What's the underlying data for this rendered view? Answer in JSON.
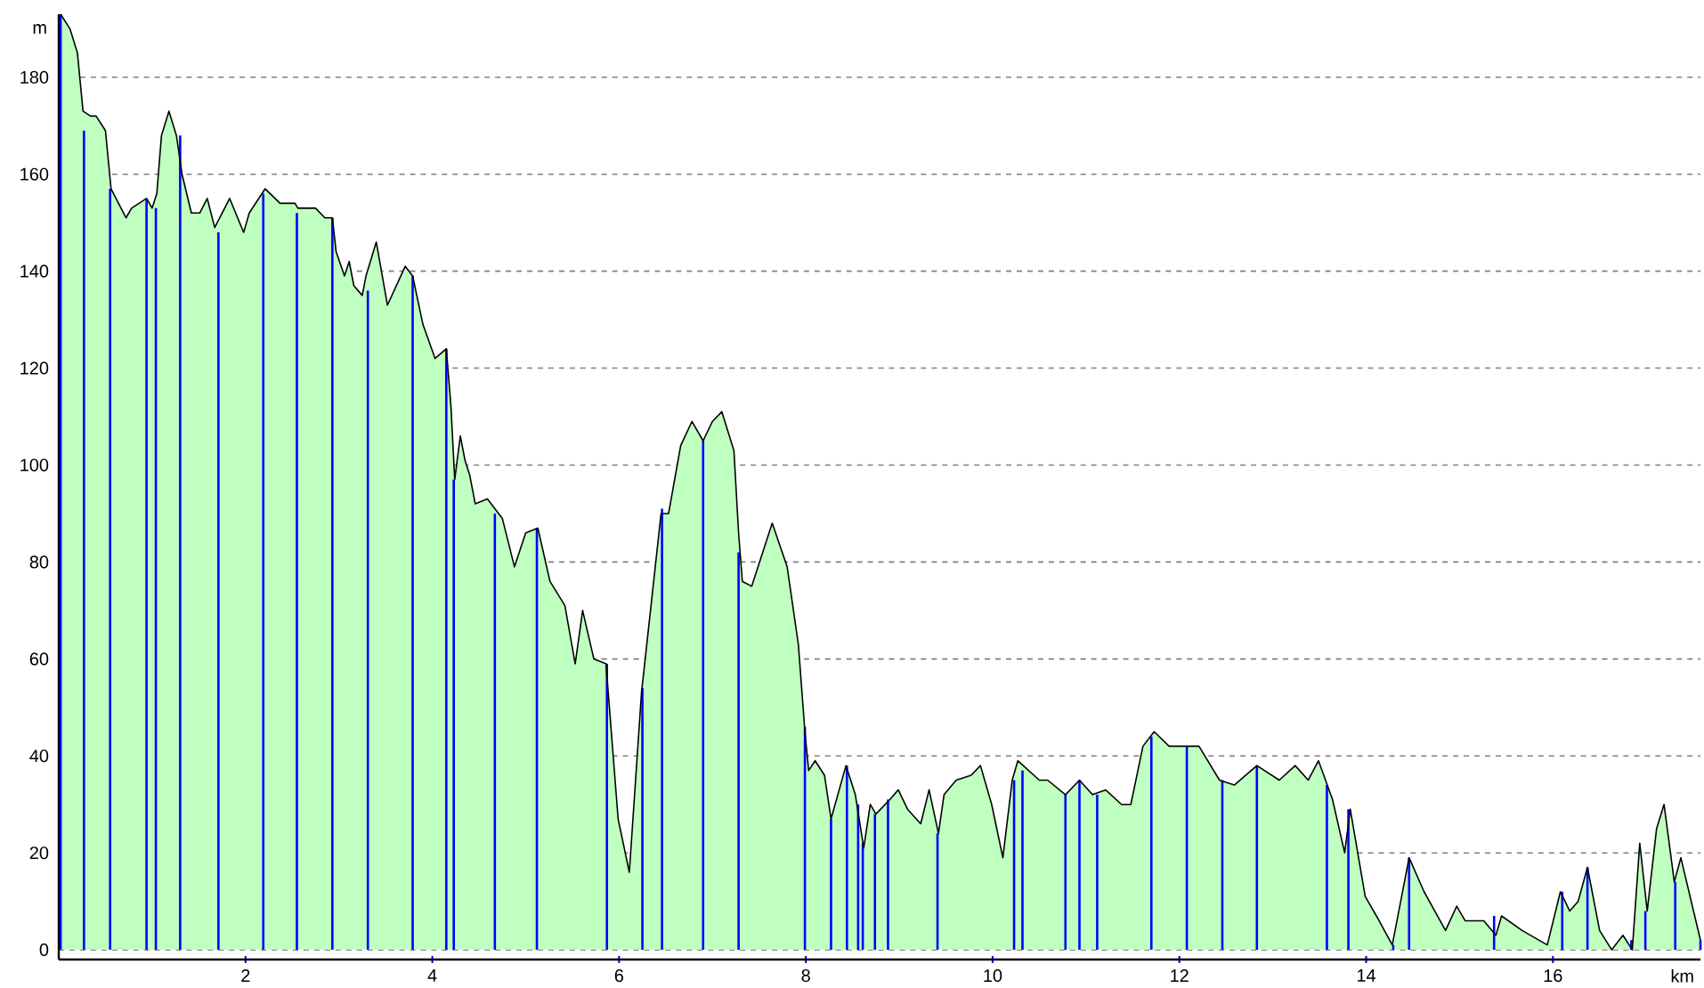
{
  "chart_data": {
    "type": "area",
    "xlabel": "km",
    "ylabel": "m",
    "xlim": [
      0,
      17.58
    ],
    "ylim": [
      -2,
      193
    ],
    "xticks": [
      2,
      4,
      6,
      8,
      10,
      12,
      14,
      16
    ],
    "yticks": [
      0,
      20,
      40,
      60,
      80,
      100,
      120,
      140,
      160,
      180
    ],
    "grid": "y",
    "series": [
      {
        "color": "#bfffbf",
        "x": [
          0.02,
          0.12,
          0.2,
          0.26,
          0.34,
          0.4,
          0.5,
          0.56,
          0.72,
          0.78,
          0.94,
          1.0,
          1.05,
          1.1,
          1.18,
          1.26,
          1.32,
          1.42,
          1.51,
          1.59,
          1.67,
          1.83,
          1.98,
          2.04,
          2.21,
          2.37,
          2.53,
          2.56,
          2.75,
          2.85,
          2.93,
          2.97,
          3.06,
          3.11,
          3.16,
          3.25,
          3.29,
          3.4,
          3.52,
          3.71,
          3.79,
          3.9,
          4.03,
          4.15,
          4.2,
          4.24,
          4.3,
          4.35,
          4.4,
          4.46,
          4.59,
          4.75,
          4.88,
          5.0,
          5.13,
          5.26,
          5.42,
          5.53,
          5.61,
          5.73,
          5.86,
          5.99,
          6.11,
          6.24,
          6.45,
          6.53,
          6.66,
          6.78,
          6.9,
          7.0,
          7.1,
          7.23,
          7.28,
          7.32,
          7.42,
          7.64,
          7.8,
          7.92,
          7.99,
          8.03,
          8.1,
          8.2,
          8.27,
          8.43,
          8.53,
          8.62,
          8.69,
          8.75,
          8.9,
          8.99,
          9.09,
          9.23,
          9.32,
          9.42,
          9.48,
          9.61,
          9.77,
          9.87,
          9.99,
          10.11,
          10.21,
          10.27,
          10.5,
          10.59,
          10.78,
          10.93,
          11.07,
          11.21,
          11.38,
          11.48,
          11.61,
          11.73,
          11.89,
          12.21,
          12.43,
          12.59,
          12.83,
          13.07,
          13.24,
          13.38,
          13.49,
          13.64,
          13.77,
          13.83,
          13.99,
          14.11,
          14.28,
          14.46,
          14.62,
          14.85,
          14.97,
          15.06,
          15.26,
          15.39,
          15.45,
          15.67,
          15.94,
          16.08,
          16.18,
          16.27,
          16.37,
          16.5,
          16.63,
          16.75,
          16.85,
          16.93,
          17.01,
          17.11,
          17.19,
          17.3,
          17.37,
          17.58
        ],
        "values": [
          193,
          190,
          185,
          173,
          172,
          172,
          169,
          157,
          151,
          153,
          155,
          153,
          156,
          168,
          173,
          168,
          160,
          152,
          152,
          155,
          149,
          155,
          148,
          152,
          157,
          154,
          154,
          153,
          153,
          151,
          151,
          144,
          139,
          142,
          137,
          135,
          139,
          146,
          133,
          141,
          139,
          129,
          122,
          124,
          112,
          97,
          106,
          101,
          98,
          92,
          93,
          89,
          79,
          86,
          87,
          76,
          71,
          59,
          70,
          60,
          59,
          27,
          16,
          53,
          90,
          90,
          104,
          109,
          105,
          109,
          111,
          103,
          86,
          76,
          75,
          88,
          79,
          63,
          45,
          37,
          39,
          36,
          27,
          38,
          32,
          21,
          30,
          28,
          31,
          33,
          29,
          26,
          33,
          24,
          32,
          35,
          36,
          38,
          30,
          19,
          35,
          39,
          35,
          35,
          32,
          35,
          32,
          33,
          30,
          30,
          42,
          45,
          42,
          42,
          35,
          34,
          38,
          35,
          38,
          35,
          39,
          31,
          20,
          29,
          11,
          7,
          1,
          19,
          12,
          4,
          9,
          6,
          6,
          3,
          7,
          4,
          1,
          12,
          8,
          10,
          17,
          4,
          0,
          3,
          0,
          22,
          8,
          25,
          30,
          14,
          19,
          2
        ]
      },
      {
        "type": "bar",
        "color": "#0000ff",
        "x": [
          0.02,
          0.27,
          0.55,
          0.94,
          1.04,
          1.3,
          1.71,
          2.19,
          2.55,
          2.93,
          3.31,
          3.79,
          4.15,
          4.23,
          4.67,
          5.12,
          5.87,
          6.25,
          6.46,
          6.9,
          7.28,
          7.99,
          8.27,
          8.44,
          8.56,
          8.61,
          8.74,
          8.88,
          9.41,
          10.23,
          10.32,
          10.78,
          10.93,
          11.12,
          11.7,
          12.08,
          12.46,
          12.83,
          13.58,
          13.81,
          14.29,
          14.46,
          15.37,
          16.1,
          16.37,
          16.84,
          16.99,
          17.31,
          17.58
        ],
        "values": [
          193,
          169,
          157,
          155,
          153,
          168,
          148,
          156,
          152,
          151,
          136,
          139,
          124,
          97,
          90,
          87,
          59,
          54,
          91,
          105,
          82,
          46,
          27,
          38,
          30,
          22,
          28,
          31,
          24,
          35,
          37,
          32,
          35,
          32,
          44,
          42,
          35,
          38,
          34,
          29,
          1,
          19,
          7,
          12,
          17,
          2,
          8,
          14,
          2
        ]
      }
    ]
  }
}
